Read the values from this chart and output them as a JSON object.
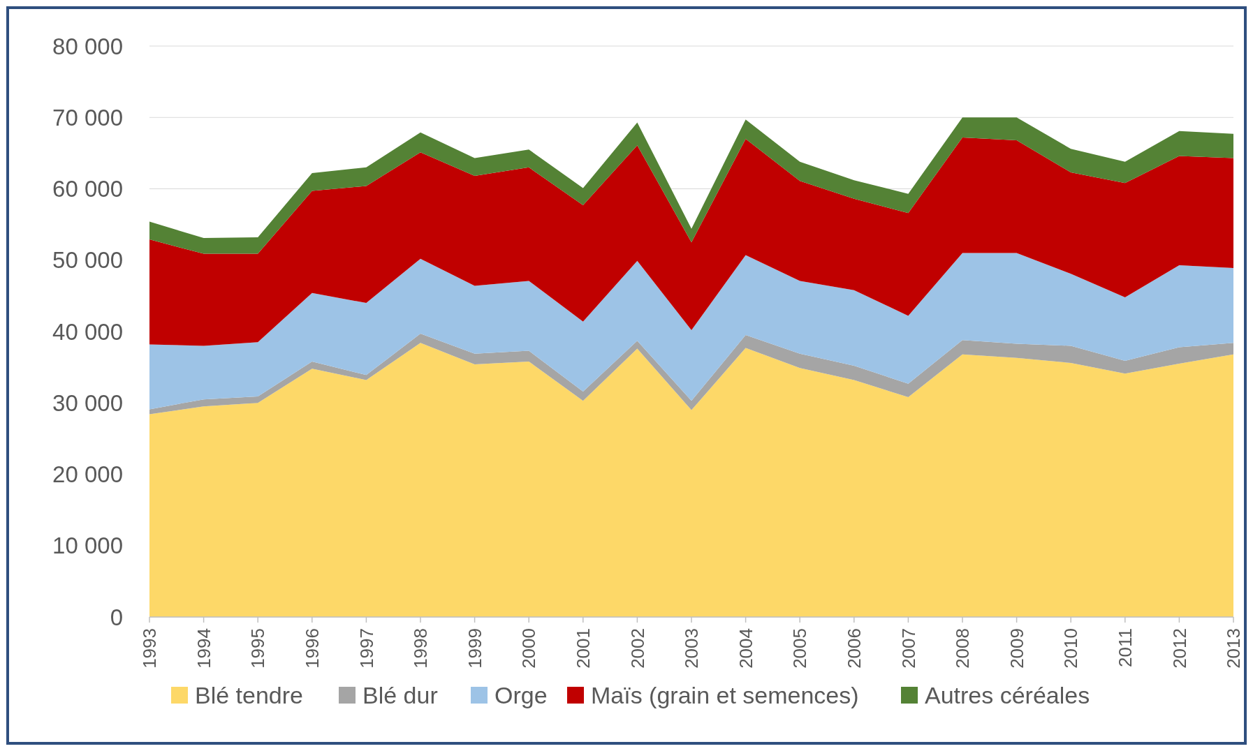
{
  "chart_data": {
    "type": "area",
    "stacked": true,
    "categories": [
      "1993",
      "1994",
      "1995",
      "1996",
      "1997",
      "1998",
      "1999",
      "2000",
      "2001",
      "2002",
      "2003",
      "2004",
      "2005",
      "2006",
      "2007",
      "2008",
      "2009",
      "2010",
      "2011",
      "2012",
      "2013"
    ],
    "series": [
      {
        "name": "Blé tendre",
        "color": "#fdd868",
        "values": [
          28400,
          29500,
          30000,
          34800,
          33200,
          38400,
          35400,
          35800,
          30300,
          37600,
          29000,
          37700,
          34900,
          33200,
          30800,
          36800,
          36300,
          35600,
          34100,
          35500,
          36800
        ]
      },
      {
        "name": "Blé dur",
        "color": "#a5a5a5",
        "values": [
          700,
          1000,
          900,
          1000,
          700,
          1300,
          1500,
          1500,
          1300,
          1100,
          1300,
          1800,
          2000,
          2000,
          1900,
          2000,
          2000,
          2400,
          1800,
          2300,
          1600
        ]
      },
      {
        "name": "Orge",
        "color": "#9dc3e6",
        "values": [
          9100,
          7500,
          7600,
          9600,
          10100,
          10500,
          9500,
          9800,
          9800,
          11200,
          9900,
          11200,
          10200,
          10600,
          9500,
          12200,
          12700,
          10100,
          8900,
          11500,
          10500
        ]
      },
      {
        "name": "Maïs (grain et semences)",
        "color": "#c00000",
        "values": [
          14700,
          12900,
          12400,
          14300,
          16400,
          14900,
          15400,
          15900,
          16300,
          16200,
          12300,
          16300,
          14000,
          12800,
          14400,
          16200,
          15800,
          14200,
          16000,
          15300,
          15400
        ]
      },
      {
        "name": "Autres céréales",
        "color": "#548235",
        "values": [
          2500,
          2200,
          2300,
          2500,
          2600,
          2800,
          2500,
          2500,
          2400,
          3200,
          1900,
          2700,
          2700,
          2600,
          2700,
          2800,
          3200,
          3300,
          3000,
          3500,
          3400
        ]
      }
    ],
    "ylim": [
      0,
      80000
    ],
    "yticks": [
      {
        "value": 0,
        "label": "0"
      },
      {
        "value": 10000,
        "label": "10 000"
      },
      {
        "value": 20000,
        "label": "20 000"
      },
      {
        "value": 30000,
        "label": "30 000"
      },
      {
        "value": 40000,
        "label": "40 000"
      },
      {
        "value": 50000,
        "label": "50 000"
      },
      {
        "value": 60000,
        "label": "60 000"
      },
      {
        "value": 70000,
        "label": "70 000"
      },
      {
        "value": 80000,
        "label": "80 000"
      }
    ],
    "grid": "y",
    "legend": "bottom"
  }
}
